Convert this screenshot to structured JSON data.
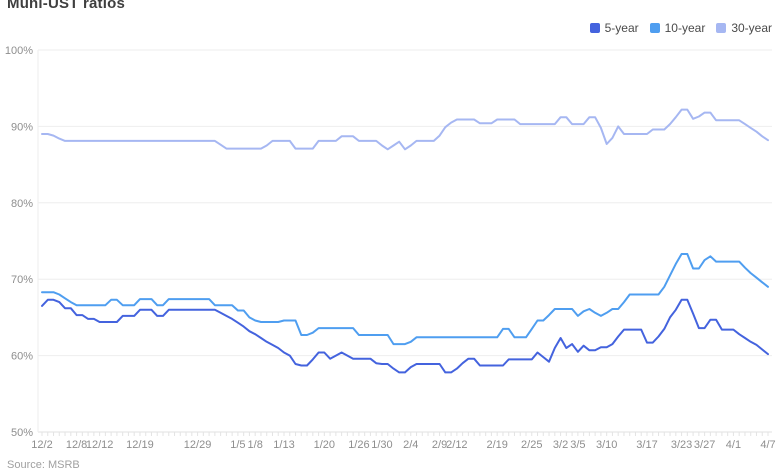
{
  "page": {
    "title": "Muni-UST ratios",
    "source_note": "Source: MSRB"
  },
  "legend": {
    "position": "top-right",
    "items": [
      {
        "label": "5-year",
        "color": "#4463de"
      },
      {
        "label": "10-year",
        "color": "#4f9ef0"
      },
      {
        "label": "30-year",
        "color": "#a6b7f2"
      }
    ]
  },
  "chart_data": {
    "type": "line",
    "title": "Muni-UST ratios",
    "xlabel": "",
    "ylabel": "",
    "ylim": [
      50,
      100
    ],
    "grid": "horizontal",
    "legend_position": "top-right",
    "y_tick_values": [
      100,
      90,
      80,
      70,
      60,
      50
    ],
    "y_tick_labels": [
      "100%",
      "90%",
      "80%",
      "70%",
      "60%",
      "50%"
    ],
    "n_points": 127,
    "x_axis_note": "daily values, 12/2 through 4/7",
    "x_tick_labels": [
      {
        "label": "12/2",
        "day": 0
      },
      {
        "label": "12/8",
        "day": 6
      },
      {
        "label": "12/12",
        "day": 10
      },
      {
        "label": "12/19",
        "day": 17
      },
      {
        "label": "12/29",
        "day": 27
      },
      {
        "label": "1/5",
        "day": 34
      },
      {
        "label": "1/8",
        "day": 37
      },
      {
        "label": "1/13",
        "day": 42
      },
      {
        "label": "1/20",
        "day": 49
      },
      {
        "label": "1/26",
        "day": 55
      },
      {
        "label": "1/30",
        "day": 59
      },
      {
        "label": "2/4",
        "day": 64
      },
      {
        "label": "2/9",
        "day": 69
      },
      {
        "label": "2/12",
        "day": 72
      },
      {
        "label": "2/19",
        "day": 79
      },
      {
        "label": "2/25",
        "day": 85
      },
      {
        "label": "3/2",
        "day": 90
      },
      {
        "label": "3/5",
        "day": 93
      },
      {
        "label": "3/10",
        "day": 98
      },
      {
        "label": "3/17",
        "day": 105
      },
      {
        "label": "3/23",
        "day": 111
      },
      {
        "label": "3/27",
        "day": 115
      },
      {
        "label": "4/1",
        "day": 120
      },
      {
        "label": "4/7",
        "day": 126
      }
    ],
    "series": [
      {
        "name": "5-year",
        "color": "#4463de",
        "values": [
          66.5,
          67.3,
          67.3,
          67.0,
          66.2,
          66.2,
          65.3,
          65.3,
          64.8,
          64.8,
          64.4,
          64.4,
          64.4,
          64.4,
          65.2,
          65.2,
          65.2,
          66.0,
          66.0,
          66.0,
          65.2,
          65.2,
          66.0,
          66.0,
          66.0,
          66.0,
          66.0,
          66.0,
          66.0,
          66.0,
          66.0,
          65.6,
          65.2,
          64.8,
          64.3,
          63.8,
          63.2,
          62.8,
          62.3,
          61.8,
          61.4,
          61.0,
          60.4,
          60.0,
          58.9,
          58.7,
          58.7,
          59.5,
          60.4,
          60.4,
          59.6,
          60.0,
          60.4,
          60.0,
          59.6,
          59.6,
          59.6,
          59.6,
          59.0,
          58.9,
          58.9,
          58.3,
          57.8,
          57.8,
          58.5,
          58.9,
          58.9,
          58.9,
          58.9,
          58.9,
          57.8,
          57.8,
          58.3,
          59.0,
          59.6,
          59.6,
          58.7,
          58.7,
          58.7,
          58.7,
          58.7,
          59.5,
          59.5,
          59.5,
          59.5,
          59.5,
          60.4,
          59.8,
          59.2,
          61.0,
          62.3,
          61.0,
          61.5,
          60.5,
          61.3,
          60.7,
          60.7,
          61.1,
          61.1,
          61.5,
          62.5,
          63.4,
          63.4,
          63.4,
          63.4,
          61.7,
          61.7,
          62.5,
          63.5,
          65.0,
          66.0,
          67.3,
          67.3,
          65.5,
          63.6,
          63.6,
          64.7,
          64.7,
          63.4,
          63.4,
          63.4,
          62.8,
          62.3,
          61.8,
          61.4,
          60.8,
          60.2
        ]
      },
      {
        "name": "10-year",
        "color": "#4f9ef0",
        "values": [
          68.3,
          68.3,
          68.3,
          68.0,
          67.5,
          67.0,
          66.6,
          66.6,
          66.6,
          66.6,
          66.6,
          66.6,
          67.3,
          67.3,
          66.6,
          66.6,
          66.6,
          67.4,
          67.4,
          67.4,
          66.6,
          66.6,
          67.4,
          67.4,
          67.4,
          67.4,
          67.4,
          67.4,
          67.4,
          67.4,
          66.6,
          66.6,
          66.6,
          66.6,
          65.9,
          65.9,
          65.0,
          64.6,
          64.4,
          64.4,
          64.4,
          64.4,
          64.6,
          64.6,
          64.6,
          62.7,
          62.7,
          63.0,
          63.6,
          63.6,
          63.6,
          63.6,
          63.6,
          63.6,
          63.6,
          62.7,
          62.7,
          62.7,
          62.7,
          62.7,
          62.7,
          61.5,
          61.5,
          61.5,
          61.8,
          62.4,
          62.4,
          62.4,
          62.4,
          62.4,
          62.4,
          62.4,
          62.4,
          62.4,
          62.4,
          62.4,
          62.4,
          62.4,
          62.4,
          62.4,
          63.5,
          63.5,
          62.4,
          62.4,
          62.4,
          63.5,
          64.6,
          64.6,
          65.3,
          66.1,
          66.1,
          66.1,
          66.1,
          65.2,
          65.8,
          66.1,
          65.6,
          65.2,
          65.6,
          66.1,
          66.1,
          67.0,
          68.0,
          68.0,
          68.0,
          68.0,
          68.0,
          68.0,
          69.0,
          70.5,
          72.0,
          73.3,
          73.3,
          71.4,
          71.4,
          72.5,
          73.0,
          72.3,
          72.3,
          72.3,
          72.3,
          72.3,
          71.5,
          70.8,
          70.2,
          69.6,
          69.0
        ]
      },
      {
        "name": "30-year",
        "color": "#a6b7f2",
        "values": [
          89.0,
          89.0,
          88.8,
          88.4,
          88.1,
          88.1,
          88.1,
          88.1,
          88.1,
          88.1,
          88.1,
          88.1,
          88.1,
          88.1,
          88.1,
          88.1,
          88.1,
          88.1,
          88.1,
          88.1,
          88.1,
          88.1,
          88.1,
          88.1,
          88.1,
          88.1,
          88.1,
          88.1,
          88.1,
          88.1,
          88.1,
          87.6,
          87.1,
          87.1,
          87.1,
          87.1,
          87.1,
          87.1,
          87.1,
          87.5,
          88.1,
          88.1,
          88.1,
          88.1,
          87.1,
          87.1,
          87.1,
          87.1,
          88.1,
          88.1,
          88.1,
          88.1,
          88.7,
          88.7,
          88.7,
          88.1,
          88.1,
          88.1,
          88.1,
          87.5,
          87.0,
          87.5,
          88.0,
          87.0,
          87.5,
          88.1,
          88.1,
          88.1,
          88.1,
          88.8,
          89.9,
          90.5,
          90.9,
          90.9,
          90.9,
          90.9,
          90.4,
          90.4,
          90.4,
          90.9,
          90.9,
          90.9,
          90.9,
          90.3,
          90.3,
          90.3,
          90.3,
          90.3,
          90.3,
          90.3,
          91.2,
          91.2,
          90.3,
          90.3,
          90.3,
          91.2,
          91.2,
          89.8,
          87.7,
          88.5,
          90.0,
          89.0,
          89.0,
          89.0,
          89.0,
          89.0,
          89.6,
          89.6,
          89.6,
          90.3,
          91.2,
          92.2,
          92.2,
          91.0,
          91.3,
          91.8,
          91.8,
          90.8,
          90.8,
          90.8,
          90.8,
          90.8,
          90.3,
          89.8,
          89.3,
          88.7,
          88.2
        ]
      }
    ],
    "style": {
      "grid_color": "#eeeeee",
      "axis_color": "#e0e0e0",
      "tick_color": "#e4e4e4",
      "axis_text_color": "#8e8e8e",
      "line_width": 2
    }
  }
}
